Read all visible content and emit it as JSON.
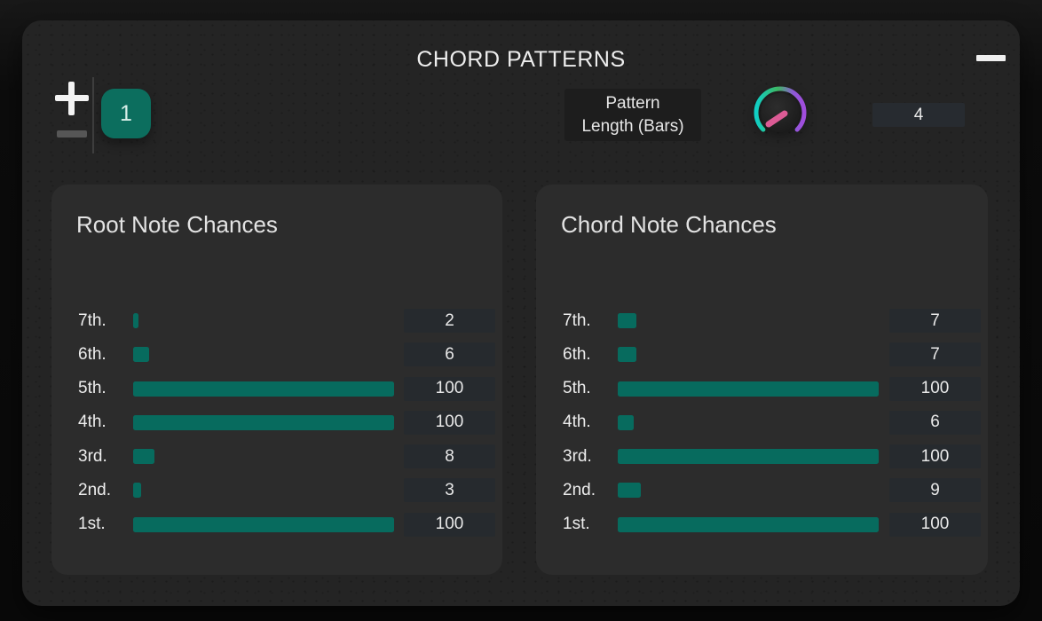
{
  "window": {
    "title": "CHORD PATTERNS"
  },
  "pattern_bar": {
    "selected_pattern": "1",
    "pattern_length_label_line1": "Pattern",
    "pattern_length_label_line2": "Length (Bars)",
    "pattern_length_value": "4"
  },
  "panels": [
    {
      "title": "Root Note Chances",
      "rows": [
        {
          "label": "7th.",
          "value": 2
        },
        {
          "label": "6th.",
          "value": 6
        },
        {
          "label": "5th.",
          "value": 100
        },
        {
          "label": "4th.",
          "value": 100
        },
        {
          "label": "3rd.",
          "value": 8
        },
        {
          "label": "2nd.",
          "value": 3
        },
        {
          "label": "1st.",
          "value": 100
        }
      ]
    },
    {
      "title": "Chord Note Chances",
      "rows": [
        {
          "label": "7th.",
          "value": 7
        },
        {
          "label": "6th.",
          "value": 7
        },
        {
          "label": "5th.",
          "value": 100
        },
        {
          "label": "4th.",
          "value": 6
        },
        {
          "label": "3rd.",
          "value": 100
        },
        {
          "label": "2nd.",
          "value": 9
        },
        {
          "label": "1st.",
          "value": 100
        }
      ]
    }
  ],
  "icons": {
    "add": "plus-icon",
    "remove": "minus-icon",
    "minimize": "minimize-icon",
    "knob": "rotary-knob"
  },
  "colors": {
    "accent_teal": "#0c6e5e",
    "bar_teal": "#076b5e",
    "knob_arc_start": "#10cfc5",
    "knob_arc_mid": "#3db763",
    "knob_arc_end": "#a14ddd",
    "knob_indicator": "#dc5b95",
    "window_bg": "#242424",
    "panel_bg": "#2c2c2c",
    "field_bg": "#262a2e"
  }
}
